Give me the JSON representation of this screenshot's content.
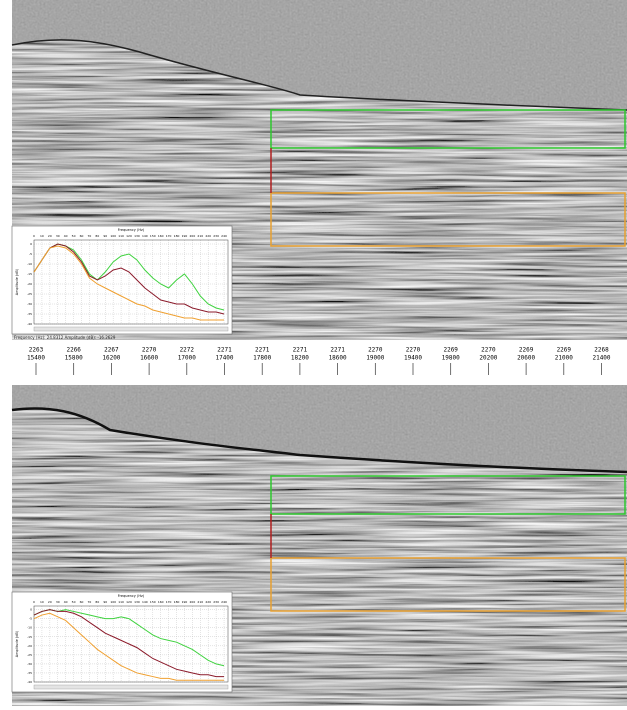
{
  "header": {
    "ticks": [
      {
        "trace": "2263",
        "cdp": "15400"
      },
      {
        "trace": "2266",
        "cdp": "15800"
      },
      {
        "trace": "2267",
        "cdp": "16200"
      },
      {
        "trace": "2270",
        "cdp": "16600"
      },
      {
        "trace": "2272",
        "cdp": "17000"
      },
      {
        "trace": "2271",
        "cdp": "17400"
      },
      {
        "trace": "2271",
        "cdp": "17800"
      },
      {
        "trace": "2271",
        "cdp": "18200"
      },
      {
        "trace": "2271",
        "cdp": "18600"
      },
      {
        "trace": "2270",
        "cdp": "19000"
      },
      {
        "trace": "2270",
        "cdp": "19400"
      },
      {
        "trace": "2269",
        "cdp": "19800"
      },
      {
        "trace": "2270",
        "cdp": "20200"
      },
      {
        "trace": "2269",
        "cdp": "20600"
      },
      {
        "trace": "2269",
        "cdp": "21000"
      },
      {
        "trace": "2268",
        "cdp": "21400"
      }
    ]
  },
  "caption": "Frequency (Hz): 24.8312 Amplitude (dB): -16.2629",
  "chart_data": [
    {
      "type": "line",
      "title": "Frequency (Hz)",
      "y_label": "Amplitude (dB)",
      "x": [
        0,
        10,
        20,
        30,
        40,
        50,
        60,
        70,
        80,
        90,
        100,
        110,
        120,
        130,
        140,
        150,
        160,
        170,
        180,
        190,
        200,
        210,
        220,
        230,
        240
      ],
      "xlim": [
        0,
        245
      ],
      "xticks": [
        0,
        10,
        20,
        30,
        40,
        50,
        60,
        70,
        80,
        90,
        100,
        110,
        120,
        130,
        140,
        150,
        160,
        170,
        180,
        190,
        200,
        210,
        220,
        230,
        240
      ],
      "ylim": [
        -40,
        2
      ],
      "yticks": [
        0,
        -5,
        -10,
        -15,
        -20,
        -25,
        -30,
        -35,
        -40
      ],
      "grid": true,
      "series": [
        {
          "color": "#3fd23f",
          "values": [
            -14,
            -8,
            -2,
            0,
            -1,
            -3,
            -8,
            -15,
            -18,
            -14,
            -9,
            -6,
            -5,
            -8,
            -13,
            -17,
            -20,
            -22,
            -18,
            -15,
            -20,
            -26,
            -30,
            -32,
            -33
          ]
        },
        {
          "color": "#8b1a2a",
          "values": [
            -14,
            -8,
            -2,
            0,
            -1,
            -4,
            -9,
            -16,
            -18,
            -16,
            -13,
            -12,
            -14,
            -18,
            -22,
            -25,
            -28,
            -29,
            -30,
            -30,
            -32,
            -33,
            -34,
            -34,
            -35
          ]
        },
        {
          "color": "#f0a030",
          "values": [
            -14,
            -8,
            -2,
            -1,
            -2,
            -5,
            -10,
            -17,
            -20,
            -22,
            -24,
            -26,
            -28,
            -30,
            -31,
            -33,
            -34,
            -35,
            -36,
            -37,
            -37,
            -38,
            -38,
            -38,
            -38
          ]
        }
      ]
    },
    {
      "type": "line",
      "title": "Frequency (Hz)",
      "y_label": "Amplitude (dB)",
      "x": [
        0,
        10,
        20,
        30,
        40,
        50,
        60,
        70,
        80,
        90,
        100,
        110,
        120,
        130,
        140,
        150,
        160,
        170,
        180,
        190,
        200,
        210,
        220,
        230,
        240
      ],
      "xlim": [
        0,
        245
      ],
      "xticks": [
        0,
        10,
        20,
        30,
        40,
        50,
        60,
        70,
        80,
        90,
        100,
        110,
        120,
        130,
        140,
        150,
        160,
        170,
        180,
        190,
        200,
        210,
        220,
        230,
        240
      ],
      "ylim": [
        -40,
        2
      ],
      "yticks": [
        0,
        -5,
        -10,
        -15,
        -20,
        -25,
        -30,
        -35,
        -40
      ],
      "grid": true,
      "series": [
        {
          "color": "#3fd23f",
          "values": [
            -3,
            -1,
            0,
            -1,
            0,
            -1,
            -2,
            -3,
            -4,
            -5,
            -5,
            -4,
            -5,
            -8,
            -11,
            -14,
            -16,
            -17,
            -18,
            -20,
            -22,
            -25,
            -28,
            -30,
            -31
          ]
        },
        {
          "color": "#8b1a2a",
          "values": [
            -3,
            -1,
            0,
            -1,
            -1,
            -2,
            -4,
            -7,
            -10,
            -13,
            -15,
            -17,
            -19,
            -21,
            -24,
            -27,
            -29,
            -31,
            -33,
            -34,
            -35,
            -36,
            -36,
            -37,
            -37
          ]
        },
        {
          "color": "#f0a030",
          "values": [
            -5,
            -3,
            -2,
            -4,
            -6,
            -10,
            -14,
            -18,
            -22,
            -25,
            -28,
            -31,
            -33,
            -35,
            -36,
            -37,
            -38,
            -38,
            -39,
            -39,
            -39,
            -39,
            -39,
            -39,
            -39
          ]
        }
      ]
    }
  ]
}
